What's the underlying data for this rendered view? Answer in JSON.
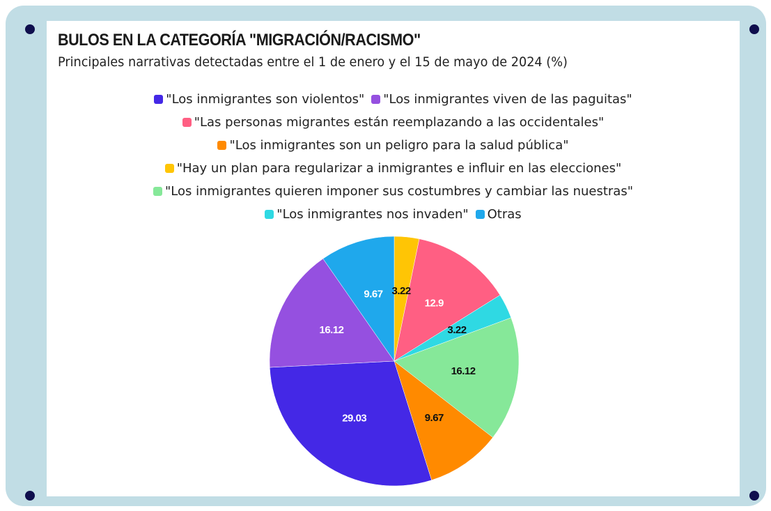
{
  "chart_data": {
    "type": "pie",
    "title": "BULOS EN LA CATEGORÍA \"MIGRACIÓN/RACISMO\"",
    "subtitle": "Principales narrativas detectadas entre el 1 de enero y el 15 de mayo de 2024 (%)",
    "categories": [
      "\"Los inmigrantes son violentos\"",
      "\"Los inmigrantes viven de las paguitas\"",
      "\"Las personas migrantes están reemplazando a las occidentales\"",
      "\"Los inmigrantes son un peligro para la salud pública\"",
      "\"Hay un plan para regularizar a inmigrantes e influir en las elecciones\"",
      "\"Los inmigrantes quieren imponer sus costumbres y cambiar las nuestras\"",
      "\"Los inmigrantes nos invaden\"",
      "Otras"
    ],
    "values": [
      29.03,
      16.12,
      12.9,
      9.67,
      3.22,
      16.12,
      3.22,
      9.67
    ],
    "colors": [
      "#4428e6",
      "#9550e0",
      "#ff5f83",
      "#ff8a00",
      "#ffc505",
      "#86e899",
      "#2fd9e3",
      "#1fa8ec"
    ],
    "legend": "top"
  }
}
